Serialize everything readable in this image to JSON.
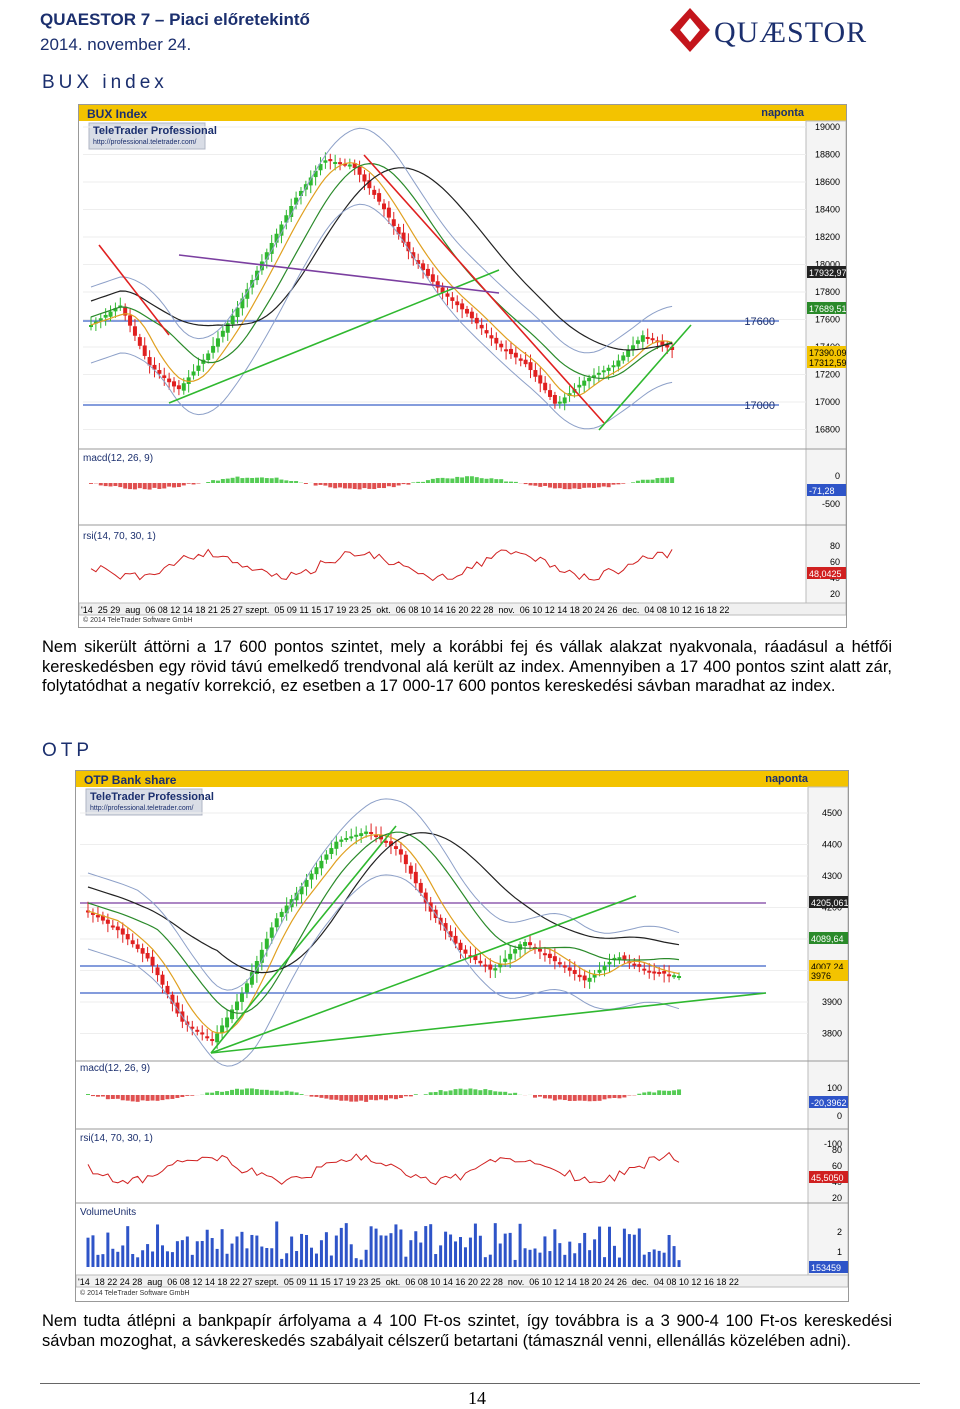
{
  "header": {
    "title": "QUAESTOR 7 – Piaci előretekintő",
    "date": "2014. november 24.",
    "logo_text": "QUÆSTOR"
  },
  "bux": {
    "section_title": "BUX index",
    "chart_title": "BUX Index",
    "freq": "naponta",
    "provider": "TeleTrader Professional",
    "provider_url": "http://professional.teletrader.com/",
    "y_ticks": [
      "19000",
      "18800",
      "18600",
      "18400",
      "18200",
      "18000",
      "17800",
      "17600",
      "17400",
      "17200",
      "17000",
      "16800"
    ],
    "levels": [
      "17600",
      "17000"
    ],
    "price_tags": [
      "17932,97",
      "17689,51",
      "17390,09",
      "17312,59"
    ],
    "macd_label": "macd(12, 26, 9)",
    "macd_ticks": [
      "0",
      "-500"
    ],
    "macd_tag": "-71,28",
    "rsi_label": "rsi(14, 70, 30, 1)",
    "rsi_ticks": [
      "80",
      "60",
      "40",
      "20"
    ],
    "rsi_tag": "48,0425",
    "x_axis": "'14  25 29  aug  06 08 12 14 18 21 25 27 szept.  05 09 11 15 17 19 23 25  okt.  06 08 10 14 16 20 22 28  nov.  06 10 12 14 18 20 24 26  dec.  04 08 10 12 16 18 22",
    "copyright": "© 2014 TeleTrader Software GmbH",
    "paragraph": "Nem sikerült áttörni a 17 600 pontos szintet, mely a korábbi fej és vállak alakzat nyakvonala, ráadásul a hétfői kereskedésben egy rövid távú emelkedő trendvonal alá került az index. Amennyiben a 17 400 pontos szint alatt zár, folytatódhat a negatív korrekció, ez esetben a 17 000-17 600 pontos kereskedési sávban maradhat az index."
  },
  "otp": {
    "section_title": "OTP",
    "chart_title": "OTP Bank share",
    "freq": "naponta",
    "provider": "TeleTrader Professional",
    "provider_url": "http://professional.teletrader.com/",
    "y_ticks": [
      "4500",
      "4400",
      "4300",
      "4200",
      "4100",
      "4000",
      "3900",
      "3800"
    ],
    "price_tags": [
      "4205,061",
      "4089,64",
      "4007,24",
      "3976"
    ],
    "macd_label": "macd(12, 26, 9)",
    "macd_ticks": [
      "100",
      "0",
      "-100"
    ],
    "macd_tag": "-20,3962",
    "rsi_label": "rsi(14, 70, 30, 1)",
    "rsi_ticks": [
      "80",
      "60",
      "40",
      "20"
    ],
    "rsi_tag": "45,5050",
    "vol_label": "VolumeUnits",
    "vol_ticks": [
      "2",
      "1"
    ],
    "vol_tag": "153459",
    "x_axis": "'14  18 22 24 28  aug  06 08 12 14 18 22 27 szept.  05 09 11 15 17 19 23 25  okt.  06 08 10 14 16 20 22 28  nov.  06 10 12 14 18 20 24 26  dec.  04 08 10 12 16 18 22",
    "copyright": "© 2014 TeleTrader Software GmbH",
    "paragraph": "Nem tudta átlépni a bankpapír árfolyama a 4 100 Ft-os szintet, így továbbra is a 3 900-4 100 Ft-os kereskedési sávban mozoghat, a sávkereskedés szabályait célszerű betartani (támasznál venni, ellenállás közelében adni)."
  },
  "footer": {
    "page_number": "14"
  },
  "colors": {
    "navy": "#1b2f6e",
    "logo_red": "#c4151c",
    "up": "#2fb82f",
    "down": "#e02020",
    "title_bar": "#f3c300"
  }
}
